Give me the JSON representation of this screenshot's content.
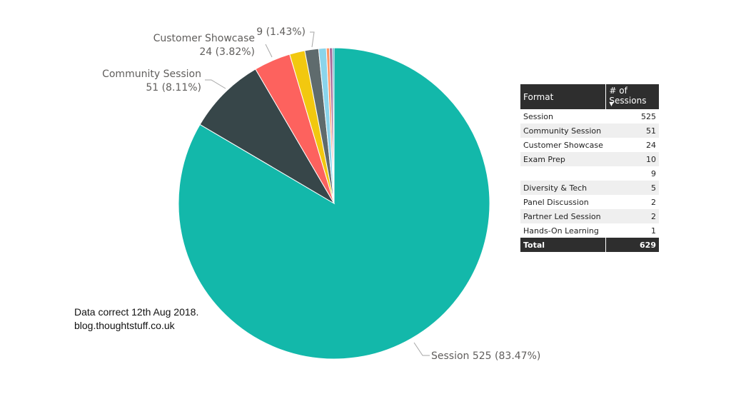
{
  "chart_data": {
    "type": "pie",
    "slices": [
      {
        "label": "Session",
        "value": 525,
        "percent": "83.47%",
        "color": "#13b8aa"
      },
      {
        "label": "Community Session",
        "value": 51,
        "percent": "8.11%",
        "color": "#374649"
      },
      {
        "label": "Customer Showcase",
        "value": 24,
        "percent": "3.82%",
        "color": "#fd625e"
      },
      {
        "label": "Exam Prep",
        "value": 10,
        "percent": "",
        "color": "#f2c80f"
      },
      {
        "label": "",
        "value": 9,
        "percent": "1.43%",
        "color": "#5f6b6d"
      },
      {
        "label": "Diversity & Tech",
        "value": 5,
        "percent": "",
        "color": "#8ad4eb"
      },
      {
        "label": "Panel Discussion",
        "value": 2,
        "percent": "",
        "color": "#fe9666"
      },
      {
        "label": "Partner Led Session",
        "value": 2,
        "percent": "",
        "color": "#a66999"
      },
      {
        "label": "Hands-On Learning",
        "value": 1,
        "percent": "",
        "color": "#3599b8"
      }
    ],
    "data_labels": {
      "session": "Session 525 (83.47%)",
      "community_name": "Community Session",
      "community_value": "51 (8.11%)",
      "showcase_name": "Customer Showcase",
      "showcase_value": "24 (3.82%)",
      "blank_value": "9 (1.43%)"
    }
  },
  "note": {
    "line1": "Data correct 12th Aug 2018.",
    "line2": "blog.thoughtstuff.co.uk"
  },
  "table": {
    "header_format": "Format",
    "header_count": "# of Sessions",
    "sort_icon": "sort-descending-icon",
    "rows": [
      {
        "format": "Session",
        "count": "525"
      },
      {
        "format": "Community Session",
        "count": "51"
      },
      {
        "format": "Customer Showcase",
        "count": "24"
      },
      {
        "format": "Exam Prep",
        "count": "10"
      },
      {
        "format": "",
        "count": "9"
      },
      {
        "format": "Diversity & Tech",
        "count": "5"
      },
      {
        "format": "Panel Discussion",
        "count": "2"
      },
      {
        "format": "Partner Led Session",
        "count": "2"
      },
      {
        "format": "Hands-On Learning",
        "count": "1"
      }
    ],
    "total_label": "Total",
    "total_count": "629"
  }
}
